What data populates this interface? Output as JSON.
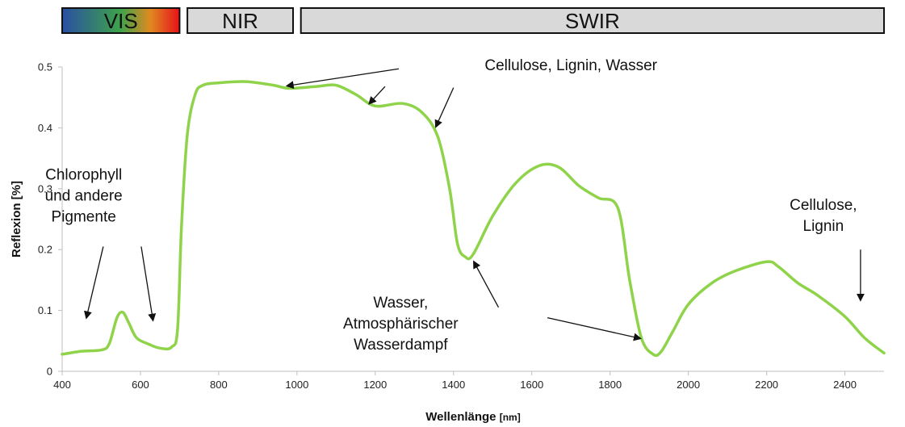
{
  "bands": [
    {
      "label": "VIS",
      "from": 400,
      "to": 700,
      "gradient": [
        "#2a4fa3",
        "#3ea34a",
        "#e08a20",
        "#e8101a"
      ]
    },
    {
      "label": "NIR",
      "from": 720,
      "to": 990,
      "fill": "#d9d9d9"
    },
    {
      "label": "SWIR",
      "from": 1010,
      "to": 2500,
      "fill": "#d9d9d9"
    }
  ],
  "chart_data": {
    "type": "line",
    "xlabel": "Wellenlänge",
    "xlabel_unit": "[nm]",
    "ylabel": "Reflexion [%]",
    "xlim": [
      400,
      2500
    ],
    "ylim": [
      0,
      0.5
    ],
    "x_ticks": [
      400,
      600,
      800,
      1000,
      1200,
      1400,
      1600,
      1800,
      2000,
      2200,
      2400
    ],
    "y_ticks": [
      0,
      0.1,
      0.2,
      0.3,
      0.4,
      0.5
    ],
    "y_tick_labels": [
      "0",
      "0.1",
      "0.2",
      "0.3",
      "0.4",
      "0.5"
    ],
    "grid": false,
    "line_color": "#8fd34a",
    "series": [
      {
        "x": [
          400,
          450,
          500,
          520,
          540,
          555,
          570,
          590,
          620,
          650,
          680,
          695,
          705,
          720,
          740,
          760,
          800,
          870,
          940,
          980,
          1050,
          1100,
          1150,
          1200,
          1270,
          1320,
          1360,
          1390,
          1410,
          1430,
          1450,
          1500,
          1560,
          1620,
          1670,
          1720,
          1770,
          1820,
          1850,
          1880,
          1910,
          1930,
          1960,
          2000,
          2060,
          2120,
          2200,
          2230,
          2280,
          2330,
          2400,
          2450,
          2500
        ],
        "y": [
          0.028,
          0.033,
          0.035,
          0.045,
          0.088,
          0.097,
          0.08,
          0.055,
          0.045,
          0.038,
          0.04,
          0.07,
          0.24,
          0.39,
          0.455,
          0.47,
          0.474,
          0.476,
          0.47,
          0.465,
          0.468,
          0.47,
          0.455,
          0.436,
          0.44,
          0.425,
          0.385,
          0.3,
          0.21,
          0.188,
          0.192,
          0.255,
          0.31,
          0.338,
          0.335,
          0.305,
          0.285,
          0.268,
          0.15,
          0.055,
          0.028,
          0.032,
          0.065,
          0.11,
          0.145,
          0.165,
          0.18,
          0.172,
          0.145,
          0.125,
          0.09,
          0.055,
          0.03
        ]
      }
    ],
    "annotations": [
      {
        "lines": [
          "Cellulose, Lignin, Wasser"
        ],
        "x_data": 1700,
        "y_data": 0.495,
        "arrows": [
          [
            1260,
            0.497,
            975,
            0.469
          ],
          [
            1225,
            0.468,
            1185,
            0.44
          ],
          [
            1400,
            0.466,
            1355,
            0.402
          ]
        ]
      },
      {
        "lines": [
          "Chlorophyll",
          "und andere",
          "Pigmente"
        ],
        "x_data": 455,
        "y_data": 0.315,
        "arrows": [
          [
            505,
            0.205,
            462,
            0.088
          ],
          [
            602,
            0.205,
            632,
            0.084
          ]
        ]
      },
      {
        "lines": [
          "Cellulose,",
          "Lignin"
        ],
        "x_data": 2345,
        "y_data": 0.265,
        "arrows": [
          [
            2440,
            0.2,
            2440,
            0.117
          ]
        ]
      },
      {
        "lines": [
          "Wasser,",
          "Atmosphärischer",
          "Wasserdampf"
        ],
        "x_data": 1265,
        "y_data": 0.105,
        "arrows": [
          [
            1515,
            0.105,
            1452,
            0.18
          ],
          [
            1640,
            0.088,
            1877,
            0.054
          ]
        ]
      }
    ]
  }
}
